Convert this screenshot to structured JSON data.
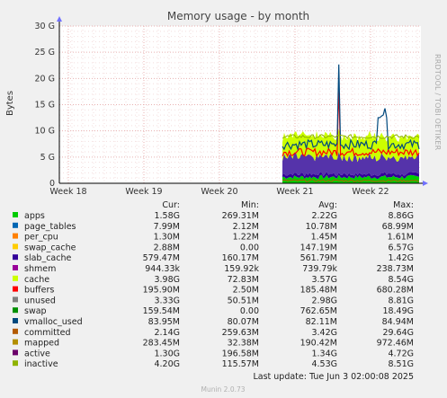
{
  "chart_data": {
    "type": "area",
    "title": "Memory usage - by month",
    "ylabel": "Bytes",
    "ylim": [
      0,
      30000000000
    ],
    "y_ticks": [
      "0",
      "5 G",
      "10 G",
      "15 G",
      "20 G",
      "25 G",
      "30 G"
    ],
    "x_ticks": [
      "Week 18",
      "Week 19",
      "Week 20",
      "Week 21",
      "Week 22"
    ],
    "grid": true,
    "sidebar_text": "RRDTOOL / TOBI OETIKER",
    "columns": [
      "Cur:",
      "Min:",
      "Avg:",
      "Max:"
    ],
    "series": [
      {
        "name": "apps",
        "color": "#00cc00",
        "cur": "1.58G",
        "min": "269.31M",
        "avg": "2.22G",
        "max": "8.86G"
      },
      {
        "name": "page_tables",
        "color": "#0066b3",
        "cur": "7.99M",
        "min": "2.12M",
        "avg": "10.78M",
        "max": "68.99M"
      },
      {
        "name": "per_cpu",
        "color": "#ff8000",
        "cur": "1.30M",
        "min": "1.22M",
        "avg": "1.45M",
        "max": "1.61M"
      },
      {
        "name": "swap_cache",
        "color": "#ffcc00",
        "cur": "2.88M",
        "min": "0.00",
        "avg": "147.19M",
        "max": "6.57G"
      },
      {
        "name": "slab_cache",
        "color": "#330099",
        "cur": "579.47M",
        "min": "160.17M",
        "avg": "561.79M",
        "max": "1.42G"
      },
      {
        "name": "shmem",
        "color": "#990099",
        "cur": "944.33k",
        "min": "159.92k",
        "avg": "739.79k",
        "max": "238.73M"
      },
      {
        "name": "cache",
        "color": "#ccff00",
        "cur": "3.98G",
        "min": "72.83M",
        "avg": "3.57G",
        "max": "8.54G"
      },
      {
        "name": "buffers",
        "color": "#ff0000",
        "cur": "195.90M",
        "min": "2.50M",
        "avg": "185.48M",
        "max": "680.28M"
      },
      {
        "name": "unused",
        "color": "#808080",
        "cur": "3.33G",
        "min": "50.51M",
        "avg": "2.98G",
        "max": "8.81G"
      },
      {
        "name": "swap",
        "color": "#008f00",
        "cur": "159.54M",
        "min": "0.00",
        "avg": "762.65M",
        "max": "18.49G"
      },
      {
        "name": "vmalloc_used",
        "color": "#00487d",
        "cur": "83.95M",
        "min": "80.07M",
        "avg": "82.11M",
        "max": "84.94M"
      },
      {
        "name": "committed",
        "color": "#b35a00",
        "cur": "2.14G",
        "min": "259.63M",
        "avg": "3.42G",
        "max": "29.64G"
      },
      {
        "name": "mapped",
        "color": "#b38f00",
        "cur": "283.45M",
        "min": "32.38M",
        "avg": "190.42M",
        "max": "972.46M"
      },
      {
        "name": "active",
        "color": "#6b006b",
        "cur": "1.30G",
        "min": "196.58M",
        "avg": "1.34G",
        "max": "4.72G"
      },
      {
        "name": "inactive",
        "color": "#8fb300",
        "cur": "4.20G",
        "min": "115.57M",
        "avg": "4.53G",
        "max": "8.51G"
      }
    ],
    "footer": "Last update:  Tue Jun  3 02:00:08 2025",
    "munin_version": "Munin 2.0.73"
  }
}
